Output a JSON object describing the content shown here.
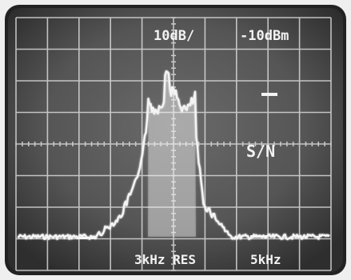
{
  "screen_readouts": {
    "scale": "10dB/",
    "reference_level": "-10dBm",
    "marker_label": "S/N",
    "resolution_bandwidth": "3kHz RES",
    "span": "5kHz"
  },
  "colors": {
    "screen_background": "#545454",
    "graticule": "#d9d9d9",
    "trace": "#f4f4f4",
    "bezel": "#1f1f1f"
  }
}
